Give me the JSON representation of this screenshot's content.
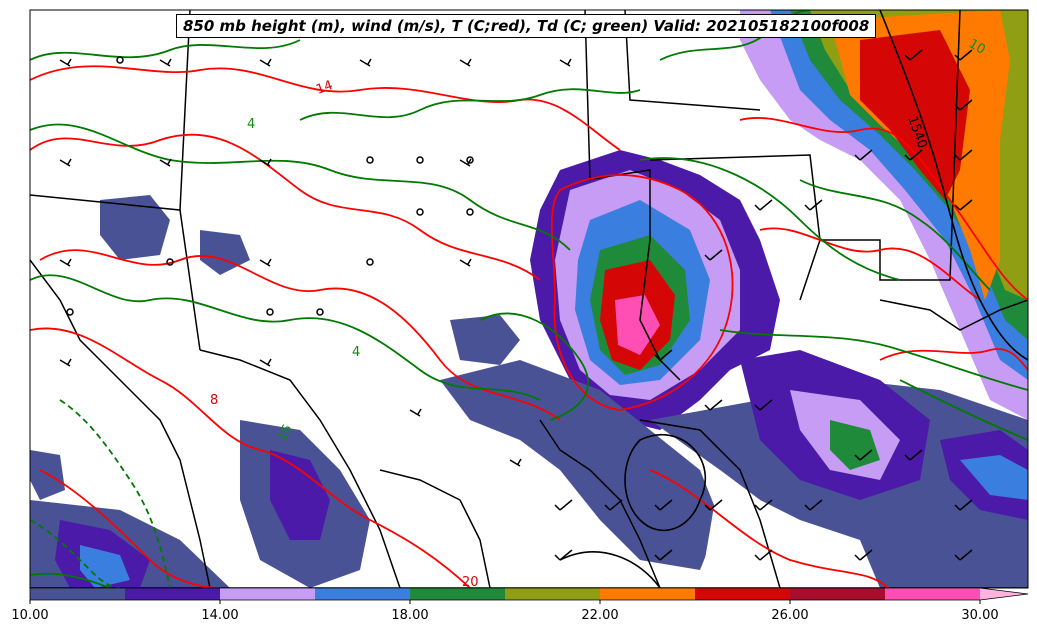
{
  "title": "850 mb height (m), wind (m/s), T (C;red), Td (C; green) Valid: 202105182100f008",
  "colorbar": {
    "ticks": [
      "10.00",
      "14.00",
      "18.00",
      "22.00",
      "26.00",
      "30.00"
    ],
    "colors": [
      "#4a5296",
      "#4b1aa8",
      "#c79cf5",
      "#3a7ee0",
      "#1f8a3a",
      "#8f9e12",
      "#ff7a00",
      "#d40606",
      "#a80d2e",
      "#ff4fb4"
    ]
  },
  "contour_labels": [
    {
      "text": "14",
      "color": "#d40606"
    },
    {
      "text": "4",
      "color": "#118a11"
    },
    {
      "text": "4",
      "color": "#118a11"
    },
    {
      "text": "16",
      "color": "#118a11"
    },
    {
      "text": "8",
      "color": "#d40606"
    },
    {
      "text": "10",
      "color": "#118a11"
    },
    {
      "text": "1540",
      "color": "#000000"
    },
    {
      "text": "20",
      "color": "#d40606"
    }
  ],
  "colors": {
    "temperature": "#ff0000",
    "dewpoint": "#007a00",
    "borders": "#000000"
  }
}
